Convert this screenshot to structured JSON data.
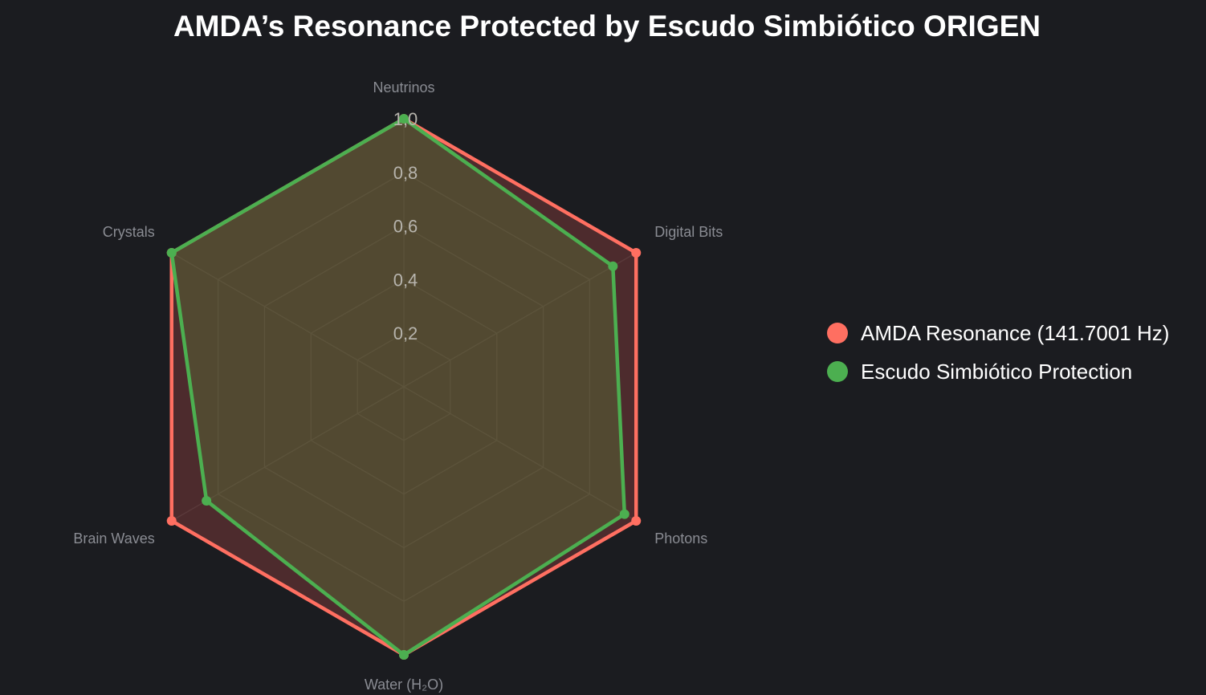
{
  "chart_data": {
    "type": "radar",
    "title": "AMDA’s Resonance Protected by Escudo Simbiótico ORIGEN",
    "categories": [
      "Neutrinos",
      "Digital Bits",
      "Photons",
      "Water (H₂O)",
      "Brain Waves",
      "Crystals"
    ],
    "series": [
      {
        "name": "AMDA Resonance (141.7001 Hz)",
        "values": [
          1.0,
          1.0,
          1.0,
          1.0,
          1.0,
          1.0
        ],
        "color": "#ff6f61",
        "fill": "rgba(255, 99, 90, 0.22)"
      },
      {
        "name": "Escudo Simbiótico Protection",
        "values": [
          1.0,
          0.9,
          0.95,
          1.0,
          0.85,
          1.0
        ],
        "color": "#4caf50",
        "fill": "rgba(98, 150, 60, 0.28)"
      }
    ],
    "rticks": [
      "0,2",
      "0,4",
      "0,6",
      "0,8",
      "1,0"
    ],
    "rtick_values": [
      0.2,
      0.4,
      0.6,
      0.8,
      1.0
    ],
    "rlim": [
      0,
      1.0
    ],
    "grid": true,
    "legend_position": "right",
    "background": "#1b1c20",
    "grid_color": "#2e2f33"
  }
}
